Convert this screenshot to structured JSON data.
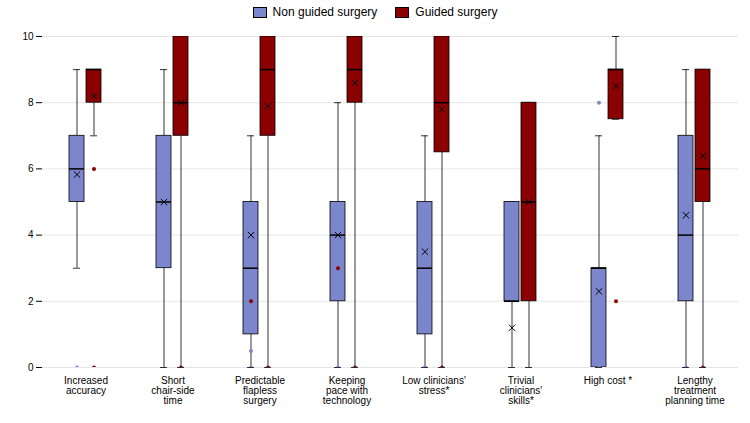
{
  "chart_data": {
    "type": "box",
    "categories": [
      "Increased\naccuracy",
      "Short\nchair-side\ntime",
      "Predictable\nflapless\nsurgery",
      "Keeping\npace with\ntechnology",
      "Low clinicians'\nstress*",
      "Trivial\nclinicians'\nskills*",
      "High cost *",
      "Lengthy\ntreatment\nplanning time"
    ],
    "series": [
      {
        "name": "Non guided surgery",
        "color": "#7B86CC",
        "boxes": [
          {
            "q1": 5.0,
            "median": 6.0,
            "q3": 7.0,
            "whislo": 3.0,
            "whishi": 9.0,
            "mean": 5.83,
            "fliers": {
              "values": [
                0
              ],
              "colors": [
                "#7B86CC"
              ]
            }
          },
          {
            "q1": 3.0,
            "median": 5.0,
            "q3": 7.0,
            "whislo": 0.0,
            "whishi": 9.0,
            "mean": 5.0,
            "fliers": {
              "values": [],
              "colors": []
            }
          },
          {
            "q1": 1.0,
            "median": 3.0,
            "q3": 5.0,
            "whislo": 0.0,
            "whishi": 7.0,
            "mean": 4.0,
            "fliers": {
              "values": [
                0,
                2.0,
                0.5
              ],
              "colors": [
                "#7B86CC",
                "#8B0000",
                "#7B86CC"
              ]
            }
          },
          {
            "q1": 2.0,
            "median": 4.0,
            "q3": 5.0,
            "whislo": 0.0,
            "whishi": 8.0,
            "mean": 4.0,
            "fliers": {
              "values": [
                0,
                3.0
              ],
              "colors": [
                "#7B86CC",
                "#8B0000"
              ]
            }
          },
          {
            "q1": 1.0,
            "median": 3.0,
            "q3": 5.0,
            "whislo": 0.0,
            "whishi": 7.0,
            "mean": 3.5,
            "fliers": {
              "values": [
                0,
                0
              ],
              "colors": [
                "#7B86CC",
                "#7B86CC"
              ]
            }
          },
          {
            "q1": 2.0,
            "median": 2.0,
            "q3": 5.0,
            "whislo": 0.0,
            "whishi": 5.0,
            "mean": 1.2,
            "fliers": {
              "values": [],
              "colors": []
            }
          },
          {
            "q1": 0.0,
            "median": 3.0,
            "q3": 3.0,
            "whislo": 0.0,
            "whishi": 7.0,
            "mean": 2.3,
            "fliers": {
              "values": [
                0,
                8.0
              ],
              "colors": [
                "#7B86CC",
                "#7B86CC"
              ]
            }
          },
          {
            "q1": 2.0,
            "median": 4.0,
            "q3": 7.0,
            "whislo": 0.0,
            "whishi": 9.0,
            "mean": 4.6,
            "fliers": {
              "values": [
                0
              ],
              "colors": [
                "#7B86CC"
              ]
            }
          }
        ]
      },
      {
        "name": "Guided surgery",
        "color": "#8B0000",
        "boxes": [
          {
            "q1": 8.0,
            "median": 9.0,
            "q3": 9.0,
            "whislo": 7.0,
            "whishi": 9.0,
            "mean": 8.2,
            "fliers": {
              "values": [
                0,
                6.0
              ],
              "colors": [
                "#8B0000",
                "#8B0000"
              ]
            }
          },
          {
            "q1": 7.0,
            "median": 8.0,
            "q3": 10.0,
            "whislo": 0.0,
            "whishi": 10.0,
            "mean": 8.0,
            "fliers": {
              "values": [
                0
              ],
              "colors": [
                "#8B0000"
              ]
            }
          },
          {
            "q1": 7.0,
            "median": 9.0,
            "q3": 10.0,
            "whislo": 0.0,
            "whishi": 10.0,
            "mean": 7.9,
            "fliers": {
              "values": [
                0
              ],
              "colors": [
                "#8B0000"
              ]
            }
          },
          {
            "q1": 8.0,
            "median": 9.0,
            "q3": 10.0,
            "whislo": 0.0,
            "whishi": 10.0,
            "mean": 8.6,
            "fliers": {
              "values": [
                0
              ],
              "colors": [
                "#8B0000"
              ]
            }
          },
          {
            "q1": 6.5,
            "median": 8.0,
            "q3": 10.0,
            "whislo": 0.0,
            "whishi": 10.0,
            "mean": 7.8,
            "fliers": {
              "values": [
                0
              ],
              "colors": [
                "#8B0000"
              ]
            }
          },
          {
            "q1": 2.0,
            "median": 5.0,
            "q3": 8.0,
            "whislo": 0.0,
            "whishi": 8.0,
            "mean": 5.0,
            "fliers": {
              "values": [],
              "colors": []
            }
          },
          {
            "q1": 7.5,
            "median": 9.0,
            "q3": 9.0,
            "whislo": 7.5,
            "whishi": 10.0,
            "mean": 8.5,
            "fliers": {
              "values": [
                2.0
              ],
              "colors": [
                "#8B0000"
              ]
            }
          },
          {
            "q1": 5.0,
            "median": 6.0,
            "q3": 9.0,
            "whislo": 0.0,
            "whishi": 9.0,
            "mean": 6.4,
            "fliers": {
              "values": [
                0
              ],
              "colors": [
                "#8B0000"
              ]
            }
          }
        ]
      }
    ],
    "ylim": [
      0,
      10
    ],
    "yticks": [
      0,
      2,
      4,
      6,
      8,
      10
    ],
    "grid": true,
    "legend": "top"
  }
}
